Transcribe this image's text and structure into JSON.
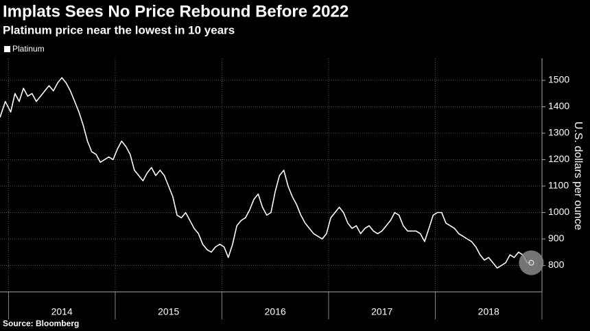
{
  "chart_data": {
    "type": "line",
    "title": "Implats Sees No Price Rebound Before 2022",
    "subtitle": "Platinum price near the lowest in 10 years",
    "y_axis_label": "U.S. dollars per ounce",
    "source": "Source: Bloomberg",
    "legend": "top-left",
    "grid": true,
    "xlim": [
      2013.92,
      2019.0
    ],
    "ylim": [
      700,
      1583
    ],
    "yticks": [
      800,
      900,
      1000,
      1100,
      1200,
      1300,
      1400,
      1500
    ],
    "xgrid": [
      2014,
      2015,
      2016,
      2017,
      2018,
      2019
    ],
    "xticks": [
      {
        "value": 2014.5,
        "label": "2014"
      },
      {
        "value": 2015.5,
        "label": "2015"
      },
      {
        "value": 2016.5,
        "label": "2016"
      },
      {
        "value": 2017.5,
        "label": "2017"
      },
      {
        "value": 2018.5,
        "label": "2018"
      }
    ],
    "x": [
      2013.92,
      2013.97,
      2014.02,
      2014.06,
      2014.1,
      2014.14,
      2014.18,
      2014.22,
      2014.26,
      2014.3,
      2014.34,
      2014.38,
      2014.42,
      2014.46,
      2014.5,
      2014.54,
      2014.58,
      2014.62,
      2014.66,
      2014.7,
      2014.74,
      2014.78,
      2014.82,
      2014.86,
      2014.9,
      2014.94,
      2014.98,
      2015.02,
      2015.06,
      2015.1,
      2015.14,
      2015.18,
      2015.22,
      2015.26,
      2015.3,
      2015.34,
      2015.38,
      2015.42,
      2015.46,
      2015.5,
      2015.54,
      2015.58,
      2015.62,
      2015.66,
      2015.7,
      2015.74,
      2015.78,
      2015.82,
      2015.86,
      2015.9,
      2015.94,
      2015.98,
      2016.02,
      2016.06,
      2016.1,
      2016.14,
      2016.18,
      2016.22,
      2016.26,
      2016.3,
      2016.34,
      2016.38,
      2016.42,
      2016.46,
      2016.5,
      2016.54,
      2016.58,
      2016.62,
      2016.66,
      2016.7,
      2016.74,
      2016.78,
      2016.82,
      2016.86,
      2016.9,
      2016.94,
      2016.98,
      2017.02,
      2017.06,
      2017.1,
      2017.14,
      2017.18,
      2017.22,
      2017.26,
      2017.3,
      2017.34,
      2017.38,
      2017.42,
      2017.46,
      2017.5,
      2017.54,
      2017.58,
      2017.62,
      2017.66,
      2017.7,
      2017.74,
      2017.78,
      2017.82,
      2017.86,
      2017.9,
      2017.94,
      2017.98,
      2018.02,
      2018.06,
      2018.1,
      2018.14,
      2018.18,
      2018.22,
      2018.26,
      2018.3,
      2018.34,
      2018.38,
      2018.42,
      2018.46,
      2018.5,
      2018.54,
      2018.58,
      2018.62,
      2018.66,
      2018.7,
      2018.74,
      2018.78,
      2018.82,
      2018.86,
      2018.9
    ],
    "series": [
      {
        "name": "Platinum",
        "color": "#ffffff",
        "values": [
          1360,
          1420,
          1380,
          1450,
          1420,
          1470,
          1440,
          1450,
          1420,
          1440,
          1460,
          1480,
          1460,
          1490,
          1510,
          1490,
          1460,
          1420,
          1380,
          1330,
          1270,
          1230,
          1220,
          1190,
          1200,
          1210,
          1200,
          1240,
          1270,
          1250,
          1220,
          1160,
          1140,
          1120,
          1150,
          1170,
          1140,
          1160,
          1140,
          1100,
          1060,
          990,
          980,
          1000,
          970,
          940,
          920,
          880,
          860,
          850,
          870,
          880,
          870,
          830,
          880,
          950,
          970,
          980,
          1010,
          1050,
          1070,
          1020,
          990,
          1000,
          1080,
          1140,
          1160,
          1100,
          1060,
          1030,
          990,
          960,
          940,
          920,
          910,
          900,
          920,
          980,
          1000,
          1020,
          1000,
          960,
          940,
          950,
          920,
          940,
          950,
          930,
          920,
          930,
          950,
          970,
          1000,
          990,
          950,
          930,
          930,
          930,
          920,
          890,
          940,
          990,
          1000,
          1000,
          960,
          950,
          940,
          920,
          910,
          900,
          890,
          870,
          840,
          820,
          830,
          810,
          790,
          800,
          810,
          840,
          830,
          850,
          840,
          810,
          810
        ]
      }
    ]
  }
}
